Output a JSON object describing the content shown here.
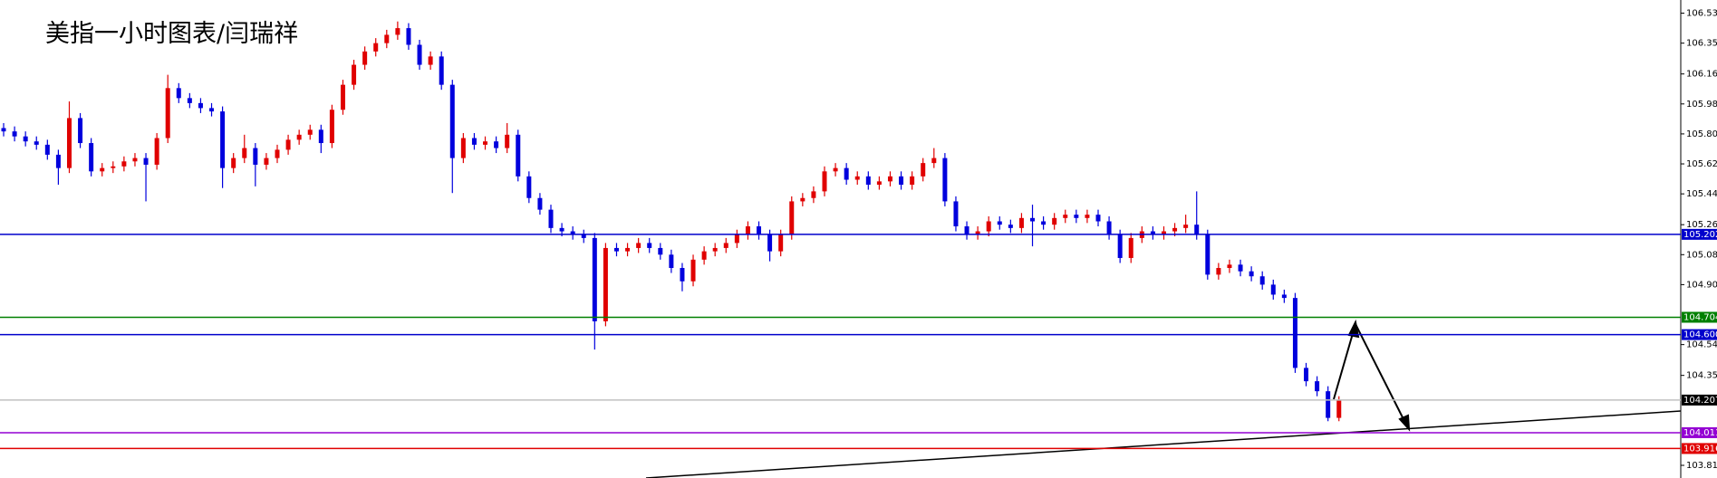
{
  "chart_data": {
    "type": "candlestick",
    "title": "美指一小时图表/闫瑞祥",
    "ylim": [
      103.739,
      106.609
    ],
    "yticks": [
      {
        "value": 106.53,
        "label": "106.530"
      },
      {
        "value": 106.35,
        "label": "106.350"
      },
      {
        "value": 106.165,
        "label": "106.165"
      },
      {
        "value": 105.985,
        "label": "105.985"
      },
      {
        "value": 105.805,
        "label": "105.805"
      },
      {
        "value": 105.625,
        "label": "105.625"
      },
      {
        "value": 105.445,
        "label": "105.445"
      },
      {
        "value": 105.26,
        "label": "105.260"
      },
      {
        "value": 105.08,
        "label": "105.080"
      },
      {
        "value": 104.9,
        "label": "104.900"
      },
      {
        "value": 104.54,
        "label": "104.540"
      },
      {
        "value": 104.355,
        "label": "104.355"
      },
      {
        "value": 103.815,
        "label": "103.815"
      }
    ],
    "up_color": "#e00000",
    "down_color": "#0000dd",
    "levels": [
      {
        "value": 105.202,
        "color": "#0000cc"
      },
      {
        "value": 104.704,
        "color": "#008000"
      },
      {
        "value": 104.6,
        "label": "104.600",
        "color": "#0000cc"
      },
      {
        "value": 104.207,
        "color": "#c0c0c0"
      },
      {
        "value": 104.011,
        "color": "#9400d3"
      },
      {
        "value": 103.916,
        "color": "#e00000"
      }
    ],
    "candles": [
      [
        105.84,
        105.87,
        105.79,
        105.82
      ],
      [
        105.82,
        105.85,
        105.76,
        105.79
      ],
      [
        105.79,
        105.82,
        105.73,
        105.76
      ],
      [
        105.76,
        105.79,
        105.71,
        105.74
      ],
      [
        105.74,
        105.77,
        105.65,
        105.68
      ],
      [
        105.68,
        105.71,
        105.5,
        105.6
      ],
      [
        105.6,
        106.0,
        105.57,
        105.9
      ],
      [
        105.9,
        105.93,
        105.72,
        105.75
      ],
      [
        105.75,
        105.78,
        105.55,
        105.58
      ],
      [
        105.58,
        105.63,
        105.55,
        105.6
      ],
      [
        105.6,
        105.64,
        105.57,
        105.61
      ],
      [
        105.61,
        105.67,
        105.58,
        105.64
      ],
      [
        105.64,
        105.69,
        105.61,
        105.66
      ],
      [
        105.66,
        105.69,
        105.4,
        105.62
      ],
      [
        105.62,
        105.81,
        105.59,
        105.78
      ],
      [
        105.78,
        106.16,
        105.75,
        106.08
      ],
      [
        106.08,
        106.11,
        105.99,
        106.02
      ],
      [
        106.02,
        106.05,
        105.96,
        105.99
      ],
      [
        105.99,
        106.02,
        105.93,
        105.96
      ],
      [
        105.96,
        105.99,
        105.91,
        105.94
      ],
      [
        105.94,
        105.97,
        105.48,
        105.6
      ],
      [
        105.6,
        105.69,
        105.57,
        105.66
      ],
      [
        105.66,
        105.8,
        105.63,
        105.72
      ],
      [
        105.72,
        105.75,
        105.49,
        105.62
      ],
      [
        105.62,
        105.69,
        105.59,
        105.66
      ],
      [
        105.66,
        105.74,
        105.63,
        105.71
      ],
      [
        105.71,
        105.8,
        105.68,
        105.77
      ],
      [
        105.77,
        105.83,
        105.74,
        105.8
      ],
      [
        105.8,
        105.86,
        105.77,
        105.83
      ],
      [
        105.83,
        105.86,
        105.69,
        105.75
      ],
      [
        105.75,
        105.98,
        105.72,
        105.95
      ],
      [
        105.95,
        106.13,
        105.92,
        106.1
      ],
      [
        106.1,
        106.25,
        106.07,
        106.22
      ],
      [
        106.22,
        106.33,
        106.19,
        106.3
      ],
      [
        106.3,
        106.38,
        106.27,
        106.35
      ],
      [
        106.35,
        106.43,
        106.32,
        106.4
      ],
      [
        106.4,
        106.48,
        106.37,
        106.44
      ],
      [
        106.44,
        106.47,
        106.31,
        106.34
      ],
      [
        106.34,
        106.37,
        106.19,
        106.22
      ],
      [
        106.22,
        106.3,
        106.19,
        106.27
      ],
      [
        106.27,
        106.3,
        106.07,
        106.1
      ],
      [
        106.1,
        106.13,
        105.45,
        105.66
      ],
      [
        105.66,
        105.81,
        105.63,
        105.78
      ],
      [
        105.78,
        105.81,
        105.71,
        105.74
      ],
      [
        105.74,
        105.79,
        105.71,
        105.76
      ],
      [
        105.76,
        105.79,
        105.69,
        105.72
      ],
      [
        105.72,
        105.87,
        105.69,
        105.8
      ],
      [
        105.8,
        105.83,
        105.52,
        105.55
      ],
      [
        105.55,
        105.58,
        105.39,
        105.42
      ],
      [
        105.42,
        105.45,
        105.32,
        105.35
      ],
      [
        105.35,
        105.38,
        105.21,
        105.24
      ],
      [
        105.24,
        105.27,
        105.19,
        105.22
      ],
      [
        105.22,
        105.25,
        105.17,
        105.2
      ],
      [
        105.2,
        105.23,
        105.15,
        105.18
      ],
      [
        105.18,
        105.21,
        104.51,
        104.68
      ],
      [
        104.68,
        105.15,
        104.65,
        105.12
      ],
      [
        105.12,
        105.15,
        105.07,
        105.1
      ],
      [
        105.1,
        105.15,
        105.07,
        105.12
      ],
      [
        105.12,
        105.18,
        105.09,
        105.15
      ],
      [
        105.15,
        105.18,
        105.09,
        105.12
      ],
      [
        105.12,
        105.15,
        105.05,
        105.08
      ],
      [
        105.08,
        105.11,
        104.97,
        105.0
      ],
      [
        105.0,
        105.03,
        104.86,
        104.92
      ],
      [
        104.92,
        105.08,
        104.89,
        105.05
      ],
      [
        105.05,
        105.13,
        105.02,
        105.1
      ],
      [
        105.1,
        105.15,
        105.07,
        105.12
      ],
      [
        105.12,
        105.18,
        105.09,
        105.15
      ],
      [
        105.15,
        105.23,
        105.12,
        105.2
      ],
      [
        105.2,
        105.28,
        105.17,
        105.25
      ],
      [
        105.25,
        105.28,
        105.17,
        105.2
      ],
      [
        105.2,
        105.23,
        105.04,
        105.1
      ],
      [
        105.1,
        105.23,
        105.07,
        105.2
      ],
      [
        105.2,
        105.43,
        105.17,
        105.4
      ],
      [
        105.4,
        105.45,
        105.37,
        105.42
      ],
      [
        105.42,
        105.49,
        105.39,
        105.46
      ],
      [
        105.46,
        105.61,
        105.43,
        105.58
      ],
      [
        105.58,
        105.63,
        105.55,
        105.6
      ],
      [
        105.6,
        105.63,
        105.5,
        105.53
      ],
      [
        105.53,
        105.58,
        105.5,
        105.55
      ],
      [
        105.55,
        105.58,
        105.47,
        105.5
      ],
      [
        105.5,
        105.55,
        105.47,
        105.52
      ],
      [
        105.52,
        105.58,
        105.49,
        105.55
      ],
      [
        105.55,
        105.58,
        105.47,
        105.5
      ],
      [
        105.5,
        105.58,
        105.47,
        105.55
      ],
      [
        105.55,
        105.66,
        105.52,
        105.63
      ],
      [
        105.63,
        105.72,
        105.6,
        105.66
      ],
      [
        105.66,
        105.69,
        105.37,
        105.4
      ],
      [
        105.4,
        105.43,
        105.22,
        105.25
      ],
      [
        105.25,
        105.28,
        105.17,
        105.2
      ],
      [
        105.2,
        105.25,
        105.17,
        105.22
      ],
      [
        105.22,
        105.31,
        105.19,
        105.28
      ],
      [
        105.28,
        105.31,
        105.23,
        105.26
      ],
      [
        105.26,
        105.29,
        105.21,
        105.24
      ],
      [
        105.24,
        105.33,
        105.21,
        105.3
      ],
      [
        105.3,
        105.38,
        105.13,
        105.28
      ],
      [
        105.28,
        105.31,
        105.23,
        105.26
      ],
      [
        105.26,
        105.33,
        105.23,
        105.3
      ],
      [
        105.3,
        105.35,
        105.27,
        105.32
      ],
      [
        105.32,
        105.35,
        105.27,
        105.3
      ],
      [
        105.3,
        105.35,
        105.27,
        105.32
      ],
      [
        105.32,
        105.35,
        105.25,
        105.28
      ],
      [
        105.28,
        105.31,
        105.17,
        105.2
      ],
      [
        105.2,
        105.23,
        105.03,
        105.06
      ],
      [
        105.06,
        105.21,
        105.03,
        105.18
      ],
      [
        105.18,
        105.25,
        105.15,
        105.22
      ],
      [
        105.22,
        105.25,
        105.17,
        105.2
      ],
      [
        105.2,
        105.25,
        105.17,
        105.22
      ],
      [
        105.22,
        105.27,
        105.19,
        105.24
      ],
      [
        105.24,
        105.32,
        105.21,
        105.26
      ],
      [
        105.26,
        105.46,
        105.17,
        105.2
      ],
      [
        105.2,
        105.23,
        104.93,
        104.96
      ],
      [
        104.96,
        105.03,
        104.93,
        105.0
      ],
      [
        105.0,
        105.05,
        104.97,
        105.02
      ],
      [
        105.02,
        105.05,
        104.95,
        104.98
      ],
      [
        104.98,
        105.01,
        104.92,
        104.95
      ],
      [
        104.95,
        104.98,
        104.87,
        104.9
      ],
      [
        104.9,
        104.93,
        104.81,
        104.84
      ],
      [
        104.84,
        104.87,
        104.79,
        104.82
      ],
      [
        104.82,
        104.85,
        104.37,
        104.4
      ],
      [
        104.4,
        104.43,
        104.29,
        104.32
      ],
      [
        104.32,
        104.35,
        104.23,
        104.26
      ],
      [
        104.26,
        104.29,
        104.08,
        104.1
      ],
      [
        104.1,
        104.23,
        104.08,
        104.207
      ]
    ]
  }
}
